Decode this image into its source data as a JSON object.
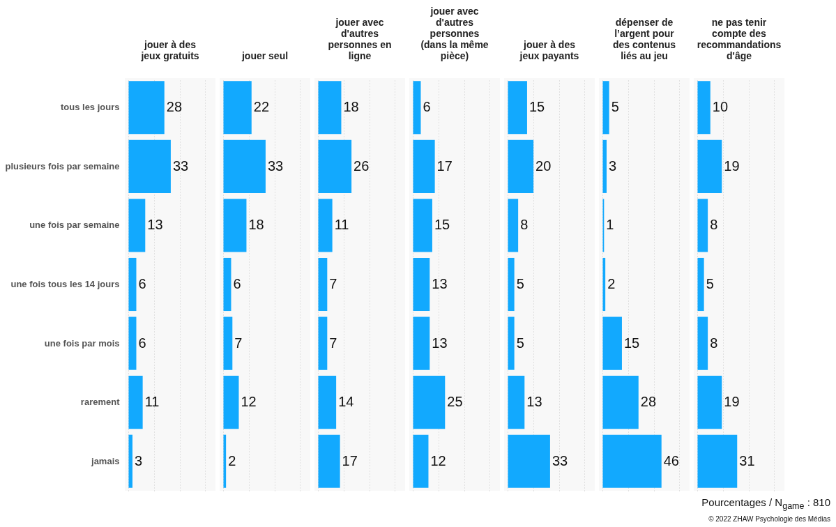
{
  "chart_data": [
    {
      "type": "bar",
      "orientation": "horizontal",
      "title": "jouer à des jeux gratuits",
      "categories": [
        "tous les jours",
        "plusieurs fois par semaine",
        "une fois par semaine",
        "une fois tous les 14 jours",
        "une fois par mois",
        "rarement",
        "jamais"
      ],
      "values": [
        28,
        33,
        13,
        6,
        6,
        11,
        3
      ],
      "color": "#12a9fe",
      "xlim": [
        -3,
        68
      ],
      "xticks": [
        {
          "value": 0,
          "label": null
        },
        {
          "value": 20,
          "label": null
        },
        {
          "value": 40,
          "label": null
        },
        {
          "value": 60,
          "label": null
        }
      ],
      "grid": true,
      "data_labels": true,
      "tick_labels": "y"
    },
    {
      "type": "bar",
      "orientation": "horizontal",
      "title": "jouer seul",
      "values": [
        22,
        33,
        18,
        6,
        7,
        12,
        2
      ],
      "color": "#12a9fe",
      "xlim": [
        -3,
        68
      ],
      "xticks": [
        {
          "value": 0,
          "label": null
        },
        {
          "value": 20,
          "label": null
        },
        {
          "value": 40,
          "label": null
        },
        {
          "value": 60,
          "label": null
        }
      ],
      "grid": true,
      "data_labels": true,
      "tick_labels": false
    },
    {
      "type": "bar",
      "orientation": "horizontal",
      "title": "jouer avec d'autres personnes en ligne",
      "values": [
        18,
        26,
        11,
        7,
        7,
        14,
        17
      ],
      "color": "#12a9fe",
      "xlim": [
        -3,
        68
      ],
      "xticks": [
        {
          "value": 0,
          "label": null
        },
        {
          "value": 20,
          "label": null
        },
        {
          "value": 40,
          "label": null
        },
        {
          "value": 60,
          "label": null
        }
      ],
      "grid": true,
      "data_labels": true,
      "tick_labels": false
    },
    {
      "type": "bar",
      "orientation": "horizontal",
      "title": "jouer avec d'autres personnes (dans la même pièce)",
      "values": [
        6,
        17,
        15,
        13,
        13,
        25,
        12
      ],
      "color": "#12a9fe",
      "xlim": [
        -3,
        68
      ],
      "xticks": [
        {
          "value": 0,
          "label": null
        },
        {
          "value": 20,
          "label": null
        },
        {
          "value": 40,
          "label": null
        },
        {
          "value": 60,
          "label": null
        }
      ],
      "grid": true,
      "data_labels": true,
      "tick_labels": false
    },
    {
      "type": "bar",
      "orientation": "horizontal",
      "title": "jouer à des jeux payants",
      "values": [
        15,
        20,
        8,
        5,
        5,
        13,
        33
      ],
      "color": "#12a9fe",
      "xlim": [
        -3,
        68
      ],
      "xticks": [
        {
          "value": 0,
          "label": null
        },
        {
          "value": 20,
          "label": null
        },
        {
          "value": 40,
          "label": null
        },
        {
          "value": 60,
          "label": null
        }
      ],
      "grid": true,
      "data_labels": true,
      "tick_labels": false
    },
    {
      "type": "bar",
      "orientation": "horizontal",
      "title": "dépenser de l’argent pour des contenus liés au jeu",
      "values": [
        5,
        3,
        1,
        2,
        15,
        28,
        46
      ],
      "color": "#12a9fe",
      "xlim": [
        -3,
        68
      ],
      "xticks": [
        {
          "value": 0,
          "label": null
        },
        {
          "value": 20,
          "label": null
        },
        {
          "value": 40,
          "label": null
        },
        {
          "value": 60,
          "label": null
        }
      ],
      "grid": true,
      "data_labels": true,
      "tick_labels": false
    },
    {
      "type": "bar",
      "orientation": "horizontal",
      "title": "ne pas tenir compte des recommandations d'âge",
      "values": [
        10,
        19,
        8,
        5,
        8,
        19,
        31
      ],
      "color": "#12a9fe",
      "xlim": [
        -3,
        68
      ],
      "xticks": [
        {
          "value": 0,
          "label": null
        },
        {
          "value": 20,
          "label": null
        },
        {
          "value": 40,
          "label": null
        },
        {
          "value": 60,
          "label": null
        }
      ],
      "grid": true,
      "data_labels": true,
      "tick_labels": false,
      "annotations": [
        "Pourcentages / N$_{game}$ : 810",
        "© 2022 ZHAW Psychologie des Médias"
      ]
    }
  ]
}
